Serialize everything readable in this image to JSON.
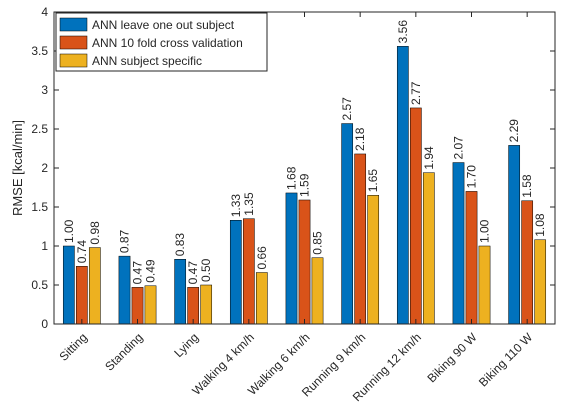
{
  "chart_data": {
    "type": "bar",
    "title": "",
    "xlabel": "",
    "ylabel": "RMSE [kcal/min]",
    "ylim": [
      0,
      4
    ],
    "yticks": [
      "0",
      "0.5",
      "1",
      "1.5",
      "2",
      "2.5",
      "3",
      "3.5",
      "4"
    ],
    "grid": false,
    "legend_position": "top-left",
    "categories": [
      "Sitting",
      "Standing",
      "Lying",
      "Walking 4 km/h",
      "Walking 6 km/h",
      "Running 9 km/h",
      "Running 12 km/h",
      "Biking 90 W",
      "Biking 110 W"
    ],
    "series": [
      {
        "name": "ANN leave one out subject",
        "color": "#0072BD",
        "values": [
          1.0,
          0.87,
          0.83,
          1.33,
          1.68,
          2.57,
          3.56,
          2.07,
          2.29
        ],
        "labels": [
          "1.00",
          "0.87",
          "0.83",
          "1.33",
          "1.68",
          "2.57",
          "3.56",
          "2.07",
          "2.29"
        ]
      },
      {
        "name": "ANN 10 fold cross validation",
        "color": "#D95319",
        "values": [
          0.74,
          0.47,
          0.47,
          1.35,
          1.59,
          2.18,
          2.77,
          1.7,
          1.58
        ],
        "labels": [
          "0.74",
          "0.47",
          "0.47",
          "1.35",
          "1.59",
          "2.18",
          "2.77",
          "1.70",
          "1.58"
        ]
      },
      {
        "name": "ANN subject specific",
        "color": "#EDB120",
        "values": [
          0.98,
          0.49,
          0.5,
          0.66,
          0.85,
          1.65,
          1.94,
          1.0,
          1.08
        ],
        "labels": [
          "0.98",
          "0.49",
          "0.50",
          "0.66",
          "0.85",
          "1.65",
          "1.94",
          "1.00",
          "1.08"
        ]
      }
    ]
  }
}
